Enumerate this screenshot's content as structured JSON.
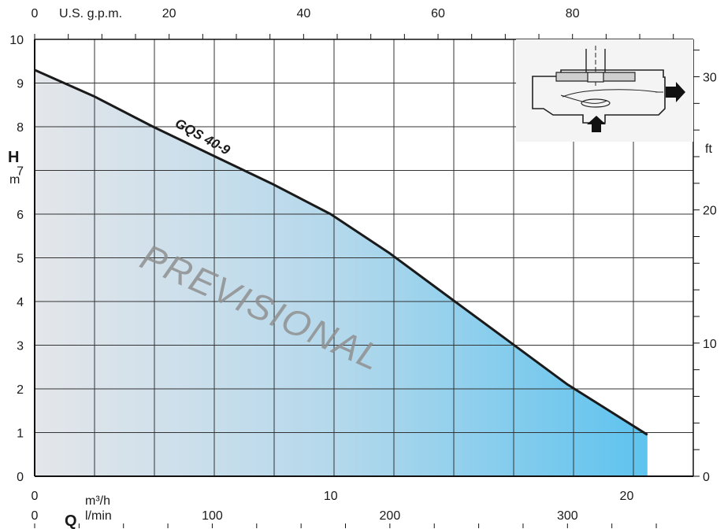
{
  "chart_data": {
    "type": "area",
    "series": [
      {
        "name": "GQS 40-9",
        "x": [
          0,
          2,
          4,
          6,
          8,
          10,
          12,
          14,
          16,
          18,
          20.7
        ],
        "y": [
          9.3,
          8.7,
          8.0,
          7.35,
          6.7,
          6.0,
          5.1,
          4.1,
          3.1,
          2.1,
          0.95
        ]
      }
    ],
    "xlabel": "Q",
    "x_unit_primary": "m³/h",
    "x_unit_secondary": "l/min",
    "x_unit_top": "U.S. g.p.m.",
    "ylabel": "H",
    "y_unit_left": "m",
    "y_unit_right": "ft",
    "xlim": [
      0,
      22.25
    ],
    "ylim": [
      0,
      10
    ],
    "x_ticks_m3h": [
      "0",
      "10",
      "20"
    ],
    "x_ticks_lmin": [
      "0",
      "100",
      "200",
      "300"
    ],
    "x_ticks_gpm": [
      "0",
      "20",
      "40",
      "60",
      "80"
    ],
    "y_ticks_m": [
      "0",
      "1",
      "2",
      "3",
      "4",
      "5",
      "6",
      "7",
      "8",
      "9",
      "10"
    ],
    "y_ticks_ft": [
      "0",
      "10",
      "20",
      "30"
    ],
    "grid": true,
    "watermark": "PREVISIONAL",
    "inset": "pump cross-section diagram"
  }
}
